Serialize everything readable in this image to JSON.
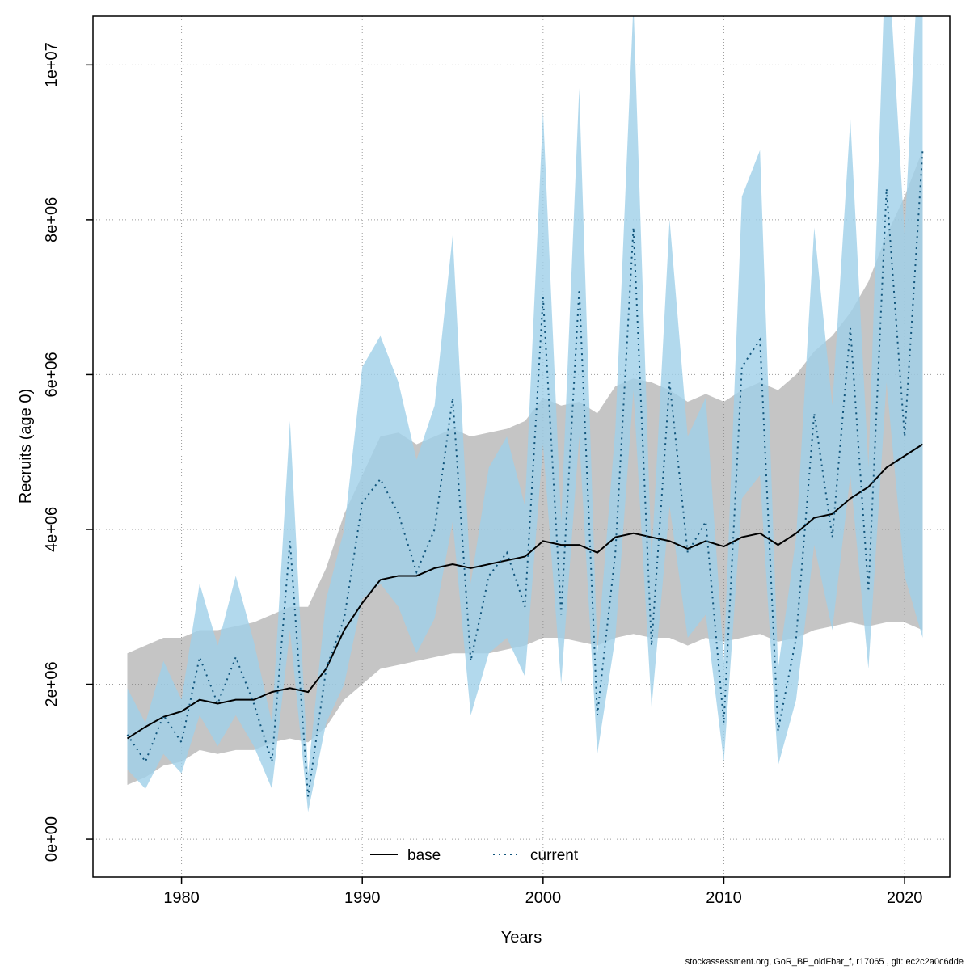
{
  "footer": "stockassessment.org, GoR_BP_oldFbar_f, r17065 , git: ec2c2a0c6dde",
  "chart_data": {
    "type": "line",
    "title": "",
    "xlabel": "Years",
    "ylabel": "Recruits (age 0)",
    "grid": true,
    "xlim": [
      1975.1,
      2022.5
    ],
    "ylim": [
      -490000,
      10630000
    ],
    "xticks": [
      1980,
      1990,
      2000,
      2010,
      2020
    ],
    "yticks": [
      0,
      2000000,
      4000000,
      6000000,
      8000000,
      10000000
    ],
    "ytick_labels": [
      "0e+00",
      "2e+06",
      "4e+06",
      "6e+06",
      "8e+06",
      "1e+07"
    ],
    "x": [
      1977,
      1978,
      1979,
      1980,
      1981,
      1982,
      1983,
      1984,
      1985,
      1986,
      1987,
      1988,
      1989,
      1990,
      1991,
      1992,
      1993,
      1994,
      1995,
      1996,
      1997,
      1998,
      1999,
      2000,
      2001,
      2002,
      2003,
      2004,
      2005,
      2006,
      2007,
      2008,
      2009,
      2010,
      2011,
      2012,
      2013,
      2014,
      2015,
      2016,
      2017,
      2018,
      2019,
      2020,
      2021
    ],
    "legend": {
      "position": "bottom-center",
      "items": [
        "base",
        "current"
      ]
    },
    "series": [
      {
        "name": "base",
        "style": "solid",
        "color": "#000000",
        "band_color": "#8c8c8c",
        "band_opacity": 0.5,
        "values": [
          1300000,
          1450000,
          1580000,
          1650000,
          1800000,
          1750000,
          1800000,
          1800000,
          1900000,
          1950000,
          1900000,
          2200000,
          2700000,
          3050000,
          3350000,
          3400000,
          3400000,
          3500000,
          3550000,
          3500000,
          3550000,
          3600000,
          3650000,
          3850000,
          3800000,
          3800000,
          3700000,
          3900000,
          3950000,
          3900000,
          3850000,
          3750000,
          3850000,
          3780000,
          3900000,
          3950000,
          3800000,
          3950000,
          4150000,
          4200000,
          4400000,
          4550000,
          4800000,
          4950000,
          5100000
        ],
        "lower": [
          700000,
          800000,
          950000,
          1000000,
          1150000,
          1100000,
          1150000,
          1150000,
          1250000,
          1300000,
          1250000,
          1450000,
          1800000,
          2000000,
          2200000,
          2250000,
          2300000,
          2350000,
          2400000,
          2400000,
          2400000,
          2450000,
          2500000,
          2600000,
          2600000,
          2550000,
          2500000,
          2600000,
          2650000,
          2600000,
          2600000,
          2500000,
          2600000,
          2550000,
          2600000,
          2650000,
          2550000,
          2600000,
          2700000,
          2750000,
          2800000,
          2750000,
          2800000,
          2800000,
          2700000
        ],
        "upper": [
          2400000,
          2500000,
          2600000,
          2600000,
          2700000,
          2700000,
          2750000,
          2800000,
          2900000,
          3000000,
          3000000,
          3500000,
          4200000,
          4700000,
          5200000,
          5250000,
          5100000,
          5200000,
          5300000,
          5200000,
          5250000,
          5300000,
          5400000,
          5700000,
          5600000,
          5650000,
          5500000,
          5850000,
          5950000,
          5900000,
          5800000,
          5650000,
          5750000,
          5650000,
          5800000,
          5900000,
          5800000,
          6000000,
          6300000,
          6500000,
          6800000,
          7200000,
          7800000,
          8300000,
          8900000
        ]
      },
      {
        "name": "current",
        "style": "dotted",
        "color": "#11557c",
        "band_color": "#9fcfe8",
        "band_opacity": 0.8,
        "values": [
          1350000,
          1000000,
          1600000,
          1250000,
          2350000,
          1750000,
          2350000,
          1750000,
          1000000,
          3850000,
          550000,
          2200000,
          2850000,
          4350000,
          4650000,
          4200000,
          3450000,
          4000000,
          5700000,
          2300000,
          3400000,
          3700000,
          3000000,
          7000000,
          2900000,
          7100000,
          1600000,
          3700000,
          7900000,
          2500000,
          5900000,
          3700000,
          4100000,
          1500000,
          6100000,
          6450000,
          1400000,
          2600000,
          5500000,
          3900000,
          6600000,
          3200000,
          8400000,
          5200000,
          8900000
        ],
        "lower": [
          900000,
          650000,
          1100000,
          850000,
          1600000,
          1200000,
          1600000,
          1200000,
          650000,
          2700000,
          350000,
          1500000,
          2000000,
          3100000,
          3300000,
          3000000,
          2400000,
          2850000,
          4100000,
          1600000,
          2400000,
          2600000,
          2100000,
          5100000,
          2000000,
          5200000,
          1100000,
          2600000,
          5800000,
          1700000,
          4300000,
          2600000,
          2900000,
          1000000,
          4400000,
          4700000,
          950000,
          1800000,
          3800000,
          2700000,
          4700000,
          2200000,
          5900000,
          3400000,
          2600000
        ],
        "upper": [
          1950000,
          1500000,
          2300000,
          1800000,
          3300000,
          2500000,
          3400000,
          2550000,
          1500000,
          5400000,
          850000,
          3100000,
          4000000,
          6100000,
          6500000,
          5900000,
          4900000,
          5600000,
          7800000,
          3300000,
          4800000,
          5200000,
          4300000,
          9400000,
          4100000,
          9700000,
          2400000,
          5300000,
          10800000,
          3600000,
          8000000,
          5200000,
          5700000,
          2300000,
          8300000,
          8900000,
          2200000,
          3900000,
          7900000,
          5600000,
          9300000,
          4800000,
          11800000,
          7800000,
          12500000
        ]
      }
    ]
  }
}
